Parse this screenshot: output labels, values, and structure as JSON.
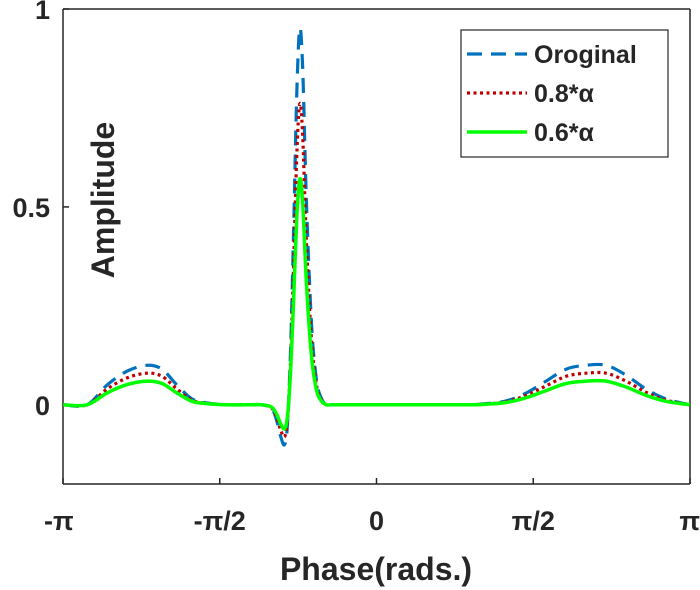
{
  "chart_data": {
    "type": "line",
    "title": "",
    "xlabel": "Phase(rads.)",
    "ylabel": "Amplitude",
    "xlim": [
      -3.14159,
      3.14159
    ],
    "ylim": [
      -0.2,
      1.0
    ],
    "xticks": [
      {
        "value": -3.14159,
        "label": "-π"
      },
      {
        "value": -1.5708,
        "label": "-π/2"
      },
      {
        "value": 0,
        "label": "0"
      },
      {
        "value": 1.5708,
        "label": "π/2"
      },
      {
        "value": 3.14159,
        "label": "π"
      }
    ],
    "yticks": [
      {
        "value": 0,
        "label": "0"
      },
      {
        "value": 0.5,
        "label": "0.5"
      },
      {
        "value": 1,
        "label": "1"
      }
    ],
    "grid": false,
    "legend_position": "top-right",
    "series": [
      {
        "name": "Oroginal",
        "color": "#0072BD",
        "style": "dashed",
        "x": [
          -3.14,
          -2.9,
          -2.7,
          -2.5,
          -2.3,
          -2.15,
          -2.0,
          -1.85,
          -1.7,
          -1.5,
          -1.3,
          -1.15,
          -1.05,
          -1.0,
          -0.96,
          -0.92,
          -0.89,
          -0.86,
          -0.83,
          -0.8,
          -0.77,
          -0.74,
          -0.7,
          -0.65,
          -0.6,
          -0.55,
          -0.5,
          -0.45,
          -0.4,
          -0.3,
          -0.1,
          0.5,
          0.9,
          1.1,
          1.3,
          1.5,
          1.7,
          1.9,
          2.1,
          2.3,
          2.5,
          2.7,
          2.9,
          3.14
        ],
        "y": [
          0.0,
          0.0,
          0.05,
          0.085,
          0.1,
          0.09,
          0.05,
          0.015,
          0.005,
          0.0,
          0.0,
          0.0,
          -0.01,
          -0.04,
          -0.08,
          -0.1,
          -0.04,
          0.15,
          0.45,
          0.78,
          0.95,
          0.85,
          0.5,
          0.2,
          0.06,
          0.015,
          0.0,
          0.0,
          0.0,
          0.0,
          0.0,
          0.0,
          0.0,
          0.003,
          0.01,
          0.03,
          0.06,
          0.09,
          0.1,
          0.1,
          0.075,
          0.04,
          0.015,
          0.0
        ]
      },
      {
        "name": "0.8*α",
        "color": "#C00000",
        "style": "dotted",
        "x": [
          -3.14,
          -2.9,
          -2.7,
          -2.5,
          -2.3,
          -2.15,
          -2.0,
          -1.85,
          -1.7,
          -1.5,
          -1.3,
          -1.15,
          -1.05,
          -1.0,
          -0.96,
          -0.92,
          -0.89,
          -0.86,
          -0.83,
          -0.8,
          -0.77,
          -0.74,
          -0.7,
          -0.65,
          -0.6,
          -0.55,
          -0.5,
          -0.45,
          -0.4,
          -0.3,
          -0.1,
          0.5,
          0.9,
          1.1,
          1.3,
          1.5,
          1.7,
          1.9,
          2.1,
          2.3,
          2.5,
          2.7,
          2.9,
          3.14
        ],
        "y": [
          0.0,
          0.0,
          0.04,
          0.068,
          0.08,
          0.072,
          0.04,
          0.012,
          0.004,
          0.0,
          0.0,
          0.0,
          -0.008,
          -0.032,
          -0.064,
          -0.08,
          -0.032,
          0.12,
          0.36,
          0.624,
          0.76,
          0.68,
          0.4,
          0.16,
          0.048,
          0.012,
          0.0,
          0.0,
          0.0,
          0.0,
          0.0,
          0.0,
          0.0,
          0.002,
          0.008,
          0.024,
          0.048,
          0.072,
          0.08,
          0.08,
          0.06,
          0.032,
          0.012,
          0.0
        ]
      },
      {
        "name": "0.6*α",
        "color": "#00FF00",
        "style": "solid",
        "x": [
          -3.14,
          -2.9,
          -2.7,
          -2.5,
          -2.3,
          -2.15,
          -2.0,
          -1.85,
          -1.7,
          -1.5,
          -1.3,
          -1.15,
          -1.05,
          -1.0,
          -0.96,
          -0.92,
          -0.89,
          -0.86,
          -0.83,
          -0.8,
          -0.77,
          -0.74,
          -0.7,
          -0.65,
          -0.6,
          -0.55,
          -0.5,
          -0.45,
          -0.4,
          -0.3,
          -0.1,
          0.5,
          0.9,
          1.1,
          1.3,
          1.5,
          1.7,
          1.9,
          2.1,
          2.3,
          2.5,
          2.7,
          2.9,
          3.14
        ],
        "y": [
          0.0,
          0.0,
          0.03,
          0.051,
          0.06,
          0.054,
          0.03,
          0.009,
          0.003,
          0.0,
          0.0,
          0.0,
          -0.006,
          -0.024,
          -0.048,
          -0.06,
          -0.024,
          0.09,
          0.27,
          0.468,
          0.57,
          0.51,
          0.3,
          0.12,
          0.036,
          0.009,
          0.0,
          0.0,
          0.0,
          0.0,
          0.0,
          0.0,
          0.0,
          0.0015,
          0.006,
          0.018,
          0.036,
          0.054,
          0.06,
          0.06,
          0.045,
          0.024,
          0.009,
          0.0
        ]
      }
    ]
  }
}
